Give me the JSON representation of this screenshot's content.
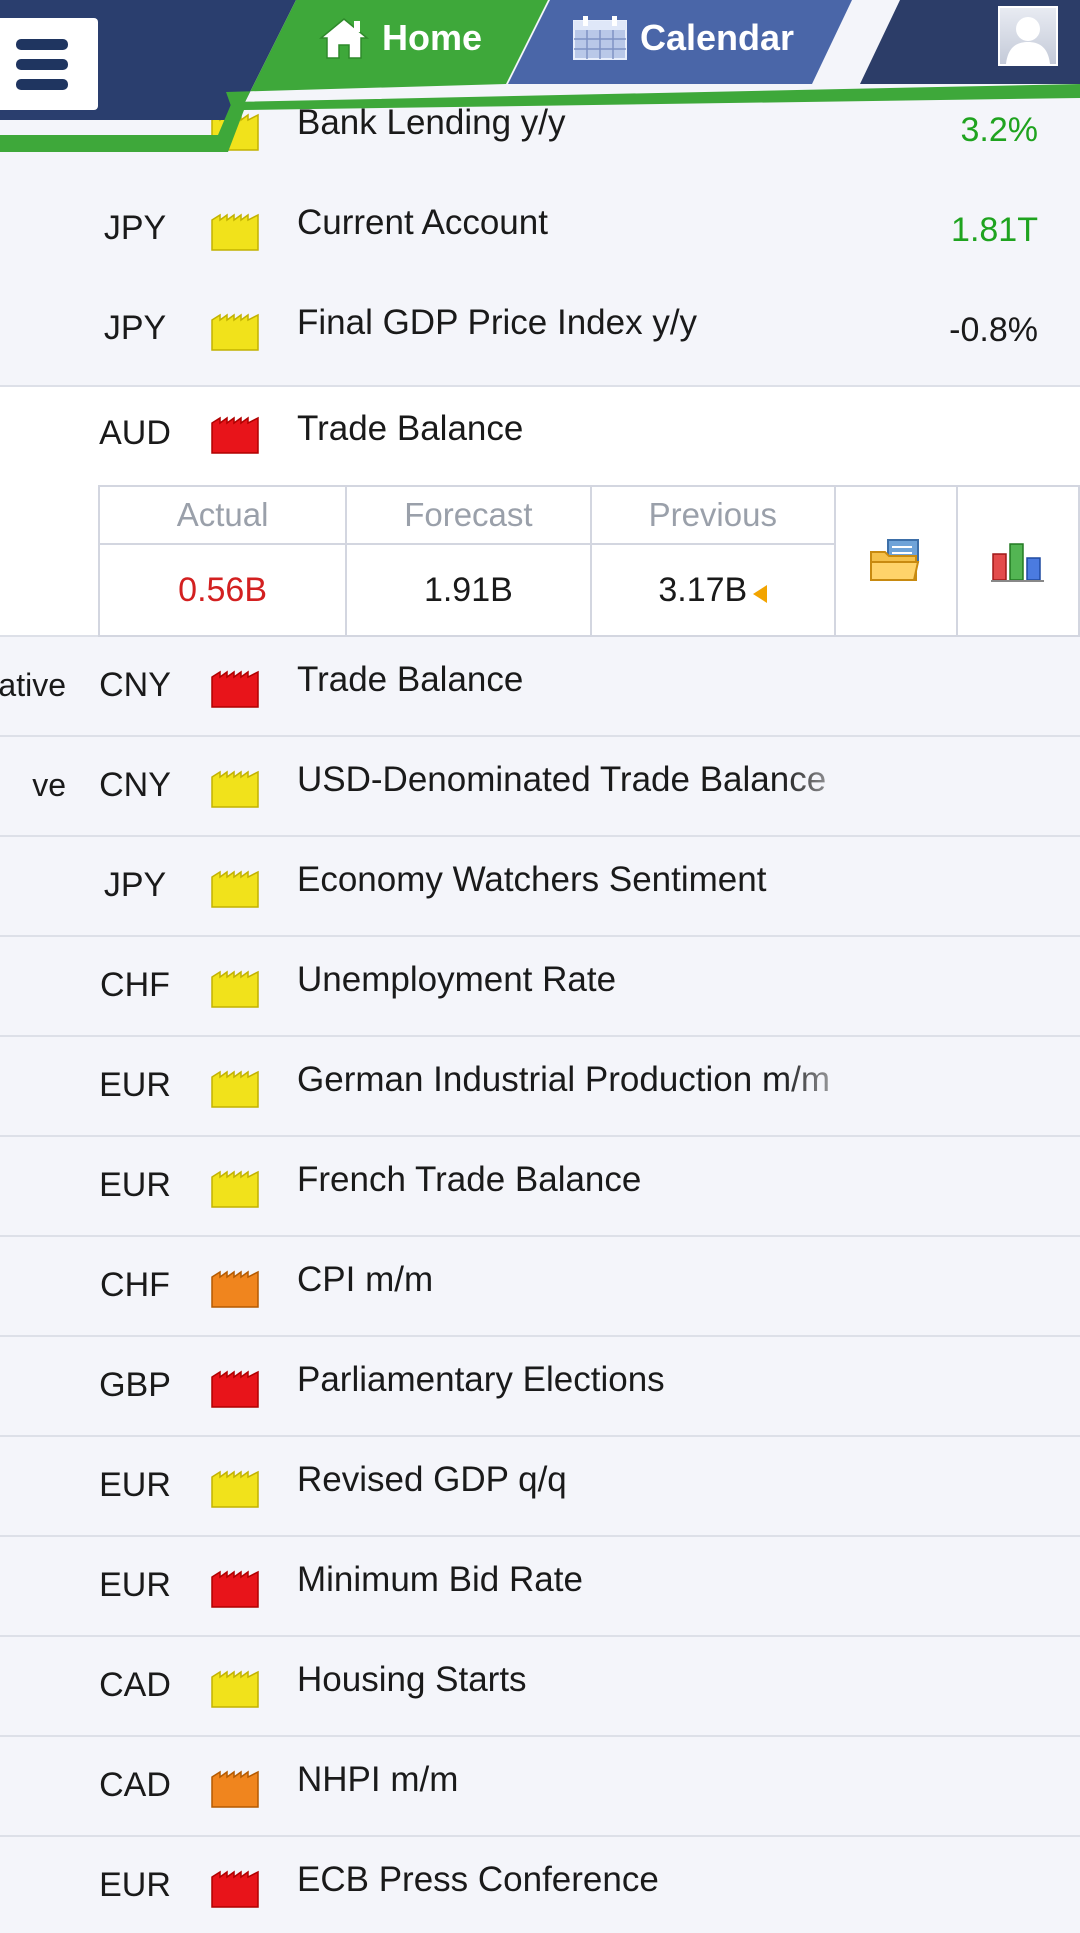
{
  "header": {
    "home_label": "Home",
    "calendar_label": "Calendar",
    "icons": {
      "menu": "menu-icon",
      "home": "home-icon",
      "calendar": "calendar-icon",
      "avatar": "avatar-icon"
    }
  },
  "colors": {
    "header_navy": "#2a3e6e",
    "home_green": "#3ea83a",
    "calendar_blue": "#4a66a8",
    "impact_high": "#e8141a",
    "impact_medium": "#f0851e",
    "impact_low": "#f1e21b",
    "value_green": "#1fa31f",
    "actual_red": "#d32020"
  },
  "rows_top": [
    {
      "time": "",
      "currency": "",
      "impact": "low",
      "event": "Bank Lending y/y",
      "value": "3.2%",
      "value_color": "green"
    },
    {
      "time": "",
      "currency": "JPY",
      "impact": "low",
      "event": "Current Account",
      "value": "1.81T",
      "value_color": "green"
    },
    {
      "time": "",
      "currency": "JPY",
      "impact": "low",
      "event": "Final GDP Price Index y/y",
      "value": "-0.8%",
      "value_color": ""
    }
  ],
  "expanded": {
    "currency": "AUD",
    "impact": "high",
    "event": "Trade Balance",
    "headers": {
      "actual": "Actual",
      "forecast": "Forecast",
      "previous": "Previous"
    },
    "values": {
      "actual": "0.56B",
      "forecast": "1.91B",
      "previous": "3.17B"
    },
    "icons": {
      "details": "folder-icon",
      "chart": "bar-chart-icon",
      "revision": "revision-arrow-icon"
    }
  },
  "rows_bottom": [
    {
      "time": "ntative",
      "currency": "CNY",
      "impact": "high",
      "event": "Trade Balance"
    },
    {
      "time": "ve",
      "currency": "CNY",
      "impact": "low",
      "event": "USD-Denominated Trade Balance"
    },
    {
      "time": "",
      "currency": "JPY",
      "impact": "low",
      "event": "Economy Watchers Sentiment"
    },
    {
      "time": "",
      "currency": "CHF",
      "impact": "low",
      "event": "Unemployment Rate"
    },
    {
      "time": "",
      "currency": "EUR",
      "impact": "low",
      "event": "German Industrial Production m/m"
    },
    {
      "time": "",
      "currency": "EUR",
      "impact": "low",
      "event": "French Trade Balance"
    },
    {
      "time": "",
      "currency": "CHF",
      "impact": "medium",
      "event": "CPI m/m"
    },
    {
      "time": "",
      "currency": "GBP",
      "impact": "high",
      "event": "Parliamentary Elections"
    },
    {
      "time": "",
      "currency": "EUR",
      "impact": "low",
      "event": "Revised GDP q/q"
    },
    {
      "time": "",
      "currency": "EUR",
      "impact": "high",
      "event": "Minimum Bid Rate"
    },
    {
      "time": "",
      "currency": "CAD",
      "impact": "low",
      "event": "Housing Starts"
    },
    {
      "time": "",
      "currency": "CAD",
      "impact": "medium",
      "event": "NHPI m/m"
    },
    {
      "time": "",
      "currency": "EUR",
      "impact": "high",
      "event": "ECB Press Conference"
    }
  ]
}
